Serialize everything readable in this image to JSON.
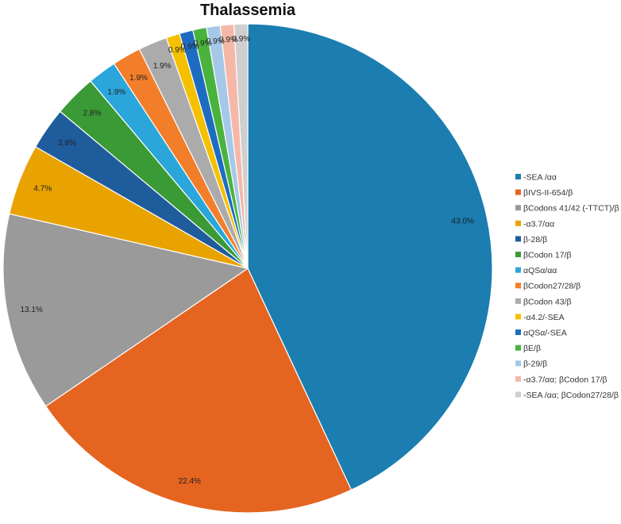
{
  "chart_data": {
    "type": "pie",
    "title": "Thalassemia",
    "start_angle_deg": 0,
    "direction": "clockwise",
    "legend_position": "right",
    "slices": [
      {
        "name": "-SEA /αα",
        "value": 43.0,
        "label": "43.0%",
        "color": "#1B7DB0"
      },
      {
        "name": "βIVS-II-654/β",
        "value": 22.4,
        "label": "22.4%",
        "color": "#E5641F"
      },
      {
        "name": "βCodons 41/42 (-TTCT)/β",
        "value": 13.1,
        "label": "13.1%",
        "color": "#9A9A9A"
      },
      {
        "name": "-α3.7/αα",
        "value": 4.7,
        "label": "4.7%",
        "color": "#E9A300"
      },
      {
        "name": "β-28/β",
        "value": 2.8,
        "label": "2.8%",
        "color": "#1F5C9C"
      },
      {
        "name": "βCodon 17/β",
        "value": 2.8,
        "label": "2.8%",
        "color": "#3A9A35"
      },
      {
        "name": "αQSα/αα",
        "value": 1.9,
        "label": "1.9%",
        "color": "#2AA6DB"
      },
      {
        "name": "βCodon27/28/β",
        "value": 1.9,
        "label": "1.9%",
        "color": "#F27E2A"
      },
      {
        "name": "βCodon 43/β",
        "value": 1.9,
        "label": "1.9%",
        "color": "#ABABAB"
      },
      {
        "name": "-α4.2/-SEA",
        "value": 0.9,
        "label": "0.9%",
        "color": "#F5C000"
      },
      {
        "name": "αQSα/-SEA",
        "value": 0.9,
        "label": "0.9%",
        "color": "#1E6CC0"
      },
      {
        "name": "βE/β",
        "value": 0.9,
        "label": "0.9%",
        "color": "#49B33E"
      },
      {
        "name": "β-29/β",
        "value": 0.9,
        "label": "0.9%",
        "color": "#A6C8E8"
      },
      {
        "name": "-α3.7/αα; βCodon 17/β",
        "value": 0.9,
        "label": "0.9%",
        "color": "#F5B8A8"
      },
      {
        "name": "-SEA /αα; βCodon27/28/β",
        "value": 0.9,
        "label": "0.9%",
        "color": "#CFCFCF"
      }
    ]
  }
}
